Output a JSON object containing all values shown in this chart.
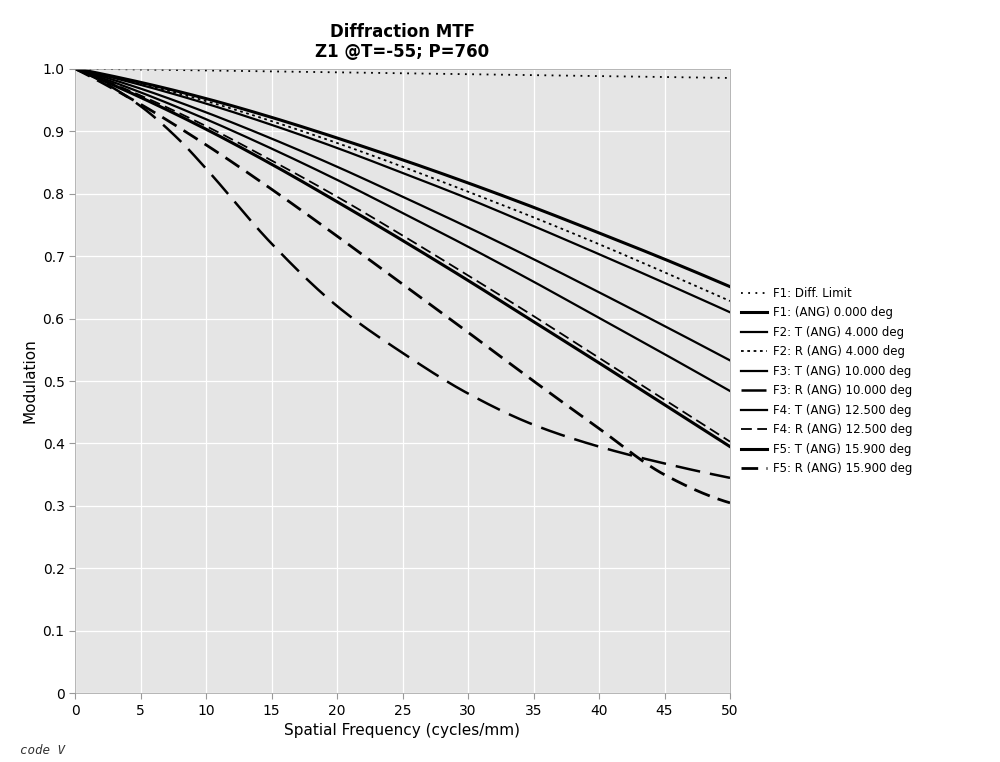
{
  "title_line1": "Diffraction MTF",
  "title_line2": "Z1 @T=-55; P=760",
  "xlabel": "Spatial Frequency (cycles/mm)",
  "ylabel": "Modulation",
  "xlim": [
    0,
    50
  ],
  "ylim": [
    0,
    1.0
  ],
  "xticks": [
    0,
    5,
    10,
    15,
    20,
    25,
    30,
    35,
    40,
    45,
    50
  ],
  "yticks": [
    0,
    0.1,
    0.2,
    0.3,
    0.4,
    0.5,
    0.6,
    0.7,
    0.8,
    0.9,
    1.0
  ],
  "background_color": "#e5e5e5",
  "figure_bg": "#ffffff",
  "curves": [
    {
      "label": "F1: Diff. Limit",
      "style": "dotted",
      "color": "#000000",
      "linewidth": 1.3,
      "marker": "none",
      "x": [
        0,
        5,
        10,
        15,
        20,
        25,
        30,
        35,
        40,
        45,
        50
      ],
      "y": [
        1.0,
        0.9985,
        0.997,
        0.9955,
        0.994,
        0.9925,
        0.991,
        0.9895,
        0.988,
        0.9865,
        0.985
      ]
    },
    {
      "label": "F1: (ANG) 0.000 deg",
      "style": "solid",
      "color": "#000000",
      "linewidth": 2.2,
      "marker": "none",
      "x": [
        0,
        5,
        10,
        15,
        20,
        25,
        30,
        35,
        40,
        45,
        50
      ],
      "y": [
        1.0,
        0.978,
        0.952,
        0.922,
        0.889,
        0.854,
        0.817,
        0.778,
        0.737,
        0.695,
        0.651
      ]
    },
    {
      "label": "F2: T (ANG) 4.000 deg",
      "style": "solid",
      "color": "#000000",
      "linewidth": 1.6,
      "marker": "none",
      "x": [
        0,
        5,
        10,
        15,
        20,
        25,
        30,
        35,
        40,
        45,
        50
      ],
      "y": [
        1.0,
        0.974,
        0.944,
        0.91,
        0.873,
        0.833,
        0.792,
        0.748,
        0.703,
        0.657,
        0.61
      ]
    },
    {
      "label": "F2: R (ANG) 4.000 deg",
      "style": "dotted_dense",
      "color": "#000000",
      "linewidth": 1.3,
      "marker": "none",
      "x": [
        0,
        5,
        10,
        15,
        20,
        25,
        30,
        35,
        40,
        45,
        50
      ],
      "y": [
        1.0,
        0.976,
        0.948,
        0.916,
        0.881,
        0.843,
        0.803,
        0.762,
        0.719,
        0.674,
        0.628
      ]
    },
    {
      "label": "F3: T (ANG) 10.000 deg",
      "style": "solid",
      "color": "#000000",
      "linewidth": 1.6,
      "marker": "none",
      "x": [
        0,
        5,
        10,
        15,
        20,
        25,
        30,
        35,
        40,
        45,
        50
      ],
      "y": [
        1.0,
        0.968,
        0.93,
        0.888,
        0.843,
        0.795,
        0.746,
        0.695,
        0.642,
        0.588,
        0.533
      ]
    },
    {
      "label": "F3: R (ANG) 10.000 deg",
      "style": "long_dashed",
      "color": "#000000",
      "linewidth": 1.8,
      "marker": "none",
      "x": [
        0,
        2,
        5,
        8,
        10,
        15,
        20,
        25,
        30,
        35,
        40,
        45,
        50
      ],
      "y": [
        1.0,
        0.98,
        0.94,
        0.885,
        0.84,
        0.72,
        0.62,
        0.545,
        0.48,
        0.43,
        0.395,
        0.368,
        0.345
      ]
    },
    {
      "label": "F4: T (ANG) 12.500 deg",
      "style": "solid",
      "color": "#000000",
      "linewidth": 1.6,
      "marker": "none",
      "x": [
        0,
        5,
        10,
        15,
        20,
        25,
        30,
        35,
        40,
        45,
        50
      ],
      "y": [
        1.0,
        0.962,
        0.919,
        0.872,
        0.822,
        0.769,
        0.715,
        0.659,
        0.601,
        0.543,
        0.484
      ]
    },
    {
      "label": "F4: R (ANG) 12.500 deg",
      "style": "dashed",
      "color": "#000000",
      "linewidth": 1.3,
      "marker": "none",
      "x": [
        0,
        5,
        10,
        15,
        20,
        25,
        30,
        35,
        40,
        45,
        50
      ],
      "y": [
        1.0,
        0.957,
        0.908,
        0.853,
        0.795,
        0.733,
        0.669,
        0.604,
        0.537,
        0.47,
        0.403
      ]
    },
    {
      "label": "F5: T (ANG) 15.900 deg",
      "style": "solid",
      "color": "#000000",
      "linewidth": 2.2,
      "marker": "none",
      "x": [
        0,
        5,
        10,
        15,
        20,
        25,
        30,
        35,
        40,
        45,
        50
      ],
      "y": [
        1.0,
        0.954,
        0.903,
        0.847,
        0.787,
        0.725,
        0.661,
        0.595,
        0.529,
        0.462,
        0.395
      ]
    },
    {
      "label": "F5: R (ANG) 15.900 deg",
      "style": "dashed",
      "color": "#000000",
      "linewidth": 2.0,
      "marker": "none",
      "x": [
        0,
        5,
        10,
        15,
        20,
        25,
        30,
        35,
        40,
        45,
        50
      ],
      "y": [
        1.0,
        0.943,
        0.878,
        0.807,
        0.732,
        0.655,
        0.578,
        0.5,
        0.424,
        0.35,
        0.305
      ]
    }
  ]
}
